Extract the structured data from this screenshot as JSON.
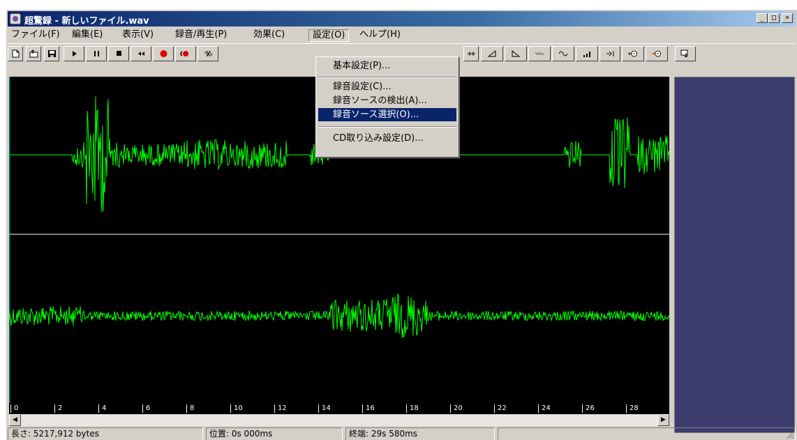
{
  "window": {
    "title": "超驚録 - 新しいファイル.wav",
    "minimize_glyph": "_",
    "maximize_glyph": "□",
    "close_glyph": "×"
  },
  "menubar": {
    "file": "ファイル(F)",
    "edit": "編集(E)",
    "view": "表示(V)",
    "record": "録音/再生(P)",
    "effect": "効果(C)",
    "settings": "設定(O)",
    "help": "ヘルプ(H)"
  },
  "settings_menu": {
    "basic": "基本設定(P)...",
    "rec_settings": "録音設定(C)...",
    "detect_source": "録音ソースの検出(A)...",
    "select_source": "録音ソース選択(O)...",
    "cd_settings": "CD取り込み設定(D)..."
  },
  "toolbar_icons": [
    "new-file-icon",
    "open-file-icon",
    "save-icon",
    "play-icon",
    "pause-icon",
    "stop-icon",
    "rewind-icon",
    "record-icon",
    "phone-record-icon",
    "cut-icon",
    "effect-1-icon",
    "fade-in-icon",
    "fade-out-icon",
    "effect-4-icon",
    "effect-5-icon",
    "effect-6-icon",
    "effect-7-icon",
    "cd-import-icon",
    "cd-export-icon",
    "download-icon"
  ],
  "ruler": {
    "ticks": [
      "0",
      "2",
      "4",
      "6",
      "8",
      "10",
      "12",
      "14",
      "16",
      "18",
      "20",
      "22",
      "24",
      "26",
      "28"
    ]
  },
  "statusbar": {
    "length": "長さ: 5217,912 bytes",
    "position": "位置: 0s 000ms",
    "end": "終端: 29s 580ms"
  },
  "colors": {
    "wave": "#00ff00",
    "background": "#000000",
    "side_panel": "#3c3c6e",
    "highlight": "#0a246a"
  }
}
